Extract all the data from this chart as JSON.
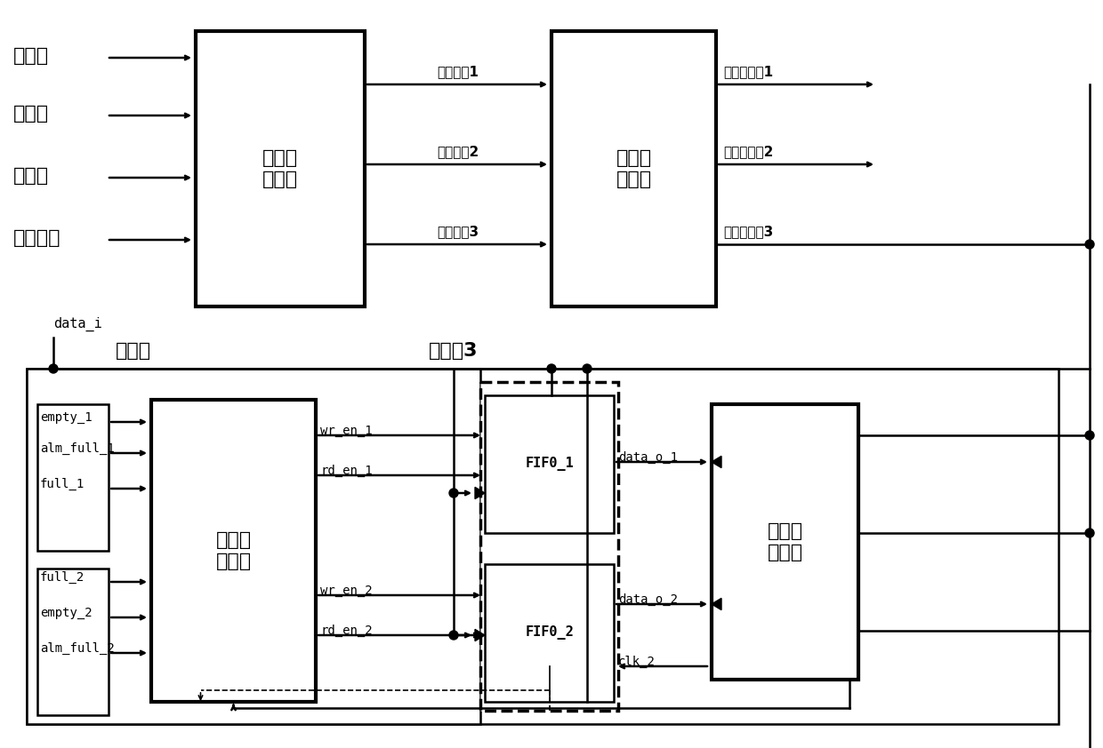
{
  "background": "#ffffff",
  "fig_width": 12.4,
  "fig_height": 8.42,
  "top_inputs": [
    "北请求",
    "南请求",
    "西请求",
    "本地请求"
  ],
  "clock_enables": [
    "时钟使能1",
    "时钟使能2",
    "时钟使能3"
  ],
  "vc_clocks": [
    "虚通道时钟1",
    "虚通道时钟2",
    "虚通道时钟3"
  ],
  "box1_label": "产生时\n钟使能",
  "box2_label": "产生门\n控时钟",
  "rw_label": "读写控\n制模块",
  "fifo1_label": "FIF0_1",
  "fifo2_label": "FIF0_2",
  "seg_label": "分段时\n钟门控",
  "data_i": "data_i",
  "shujubao": "数据包",
  "xutongdao3": "虚通道3",
  "sig_left1": [
    "empty_1",
    "alm_full_1",
    "full_1"
  ],
  "sig_left2": [
    "full_2",
    "empty_2",
    "alm_full_2"
  ],
  "sig_mid1": [
    "wr_en_1",
    "rd_en_1"
  ],
  "sig_mid2": [
    "wr_en_2",
    "rd_en_2"
  ],
  "sig_right": [
    "data_o_1",
    "data_o_2",
    "clk_2"
  ]
}
